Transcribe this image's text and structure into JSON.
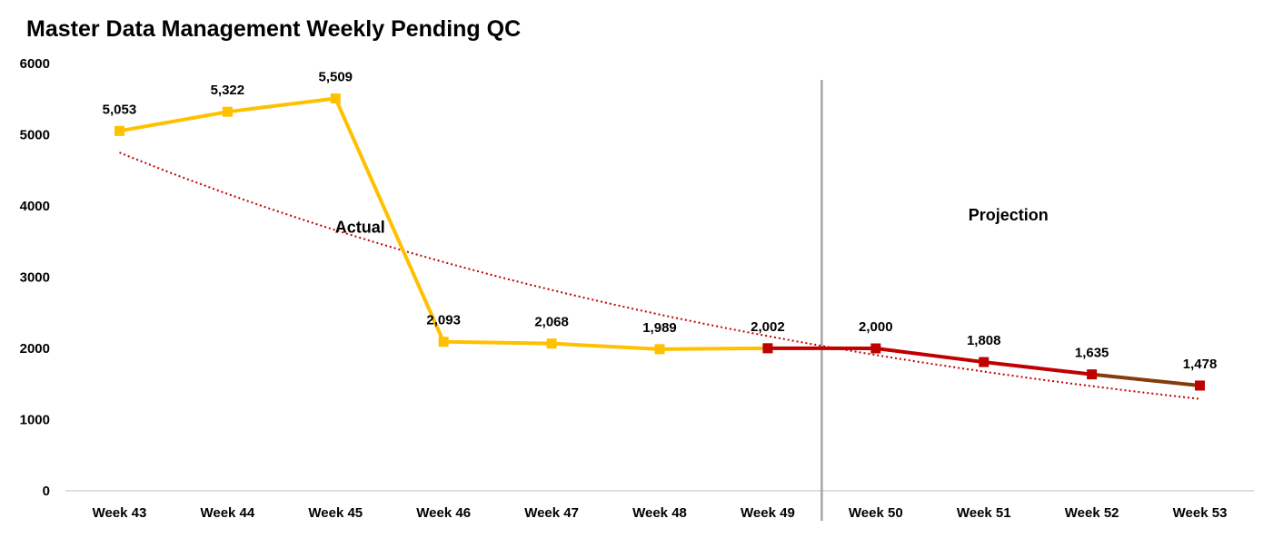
{
  "chart_data": {
    "type": "line",
    "title": "Master Data Management Weekly Pending QC",
    "xlabel": "",
    "ylabel": "",
    "categories": [
      "Week 43",
      "Week 44",
      "Week 45",
      "Week 46",
      "Week 47",
      "Week 48",
      "Week 49",
      "Week 50",
      "Week 51",
      "Week 52",
      "Week 53"
    ],
    "y_ticks": [
      "0",
      "1000",
      "2000",
      "3000",
      "4000",
      "5000",
      "6000"
    ],
    "ylim": [
      0,
      6000
    ],
    "grid": false,
    "legend": "none",
    "series": [
      {
        "values": [
          5053,
          5322,
          5509,
          2093,
          2068,
          1989,
          2002,
          null,
          null,
          null,
          null
        ],
        "labels": [
          "5,053",
          "5,322",
          "5,509",
          "2,093",
          "2,068",
          "1,989",
          "2,002",
          "",
          "",
          "",
          ""
        ],
        "color": "#FFC000",
        "marker": "square"
      },
      {
        "values": [
          null,
          null,
          null,
          null,
          null,
          null,
          2002,
          2000,
          1808,
          1635,
          1478
        ],
        "labels": [
          "",
          "",
          "",
          "",
          "",
          "",
          "",
          "2,000",
          "1,808",
          "1,635",
          "1,478"
        ],
        "color": "#C00000",
        "segment_colors": [
          "#C00000",
          "#C00000",
          "#C00000",
          "#843C0C",
          "#C00000"
        ],
        "marker": "square"
      }
    ],
    "trendline": {
      "type": "exponential",
      "style": "dotted",
      "color": "#C00000",
      "start_value": 4750,
      "end_value": 1290
    },
    "divider_after_category": "Week 49",
    "annotations": [
      {
        "text": "Actual",
        "x": "Week 45",
        "y": 3700
      },
      {
        "text": "Projection",
        "x": "Week 51",
        "y": 3870
      }
    ]
  }
}
